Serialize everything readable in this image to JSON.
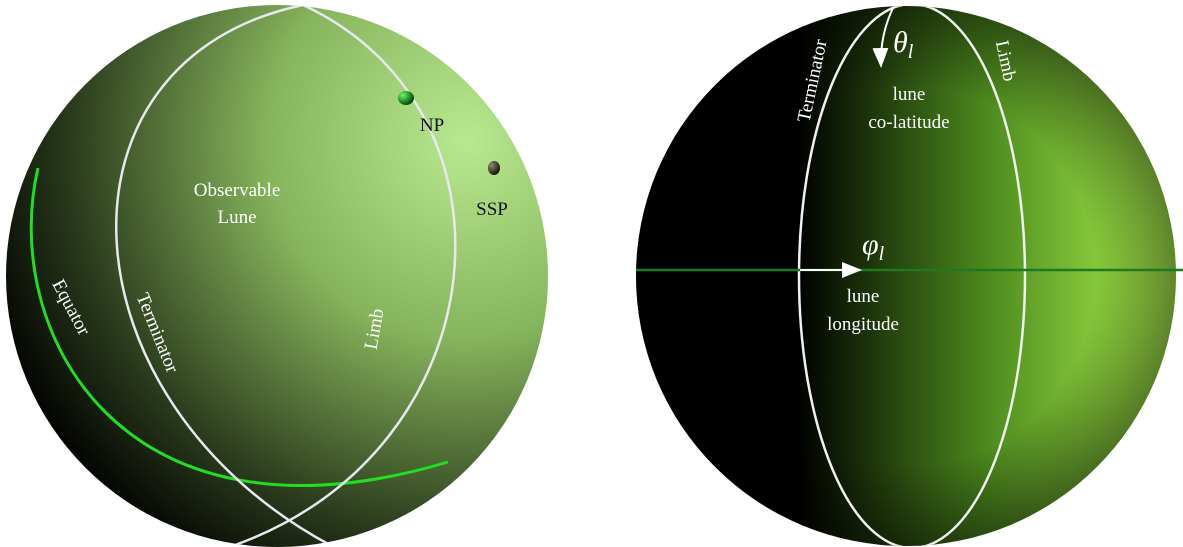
{
  "left_sphere": {
    "observable_lune": [
      "Observable",
      "Lune"
    ],
    "np": "NP",
    "ssp": "SSP",
    "equator": "Equator",
    "terminator": "Terminator",
    "limb": "Limb"
  },
  "right_sphere": {
    "theta": {
      "symbol": "θ",
      "subscript": "l"
    },
    "colatitude": [
      "lune",
      "co-latitude"
    ],
    "terminator": "Terminator",
    "limb": "Limb",
    "phi": {
      "symbol": "φ",
      "subscript": "l"
    },
    "longitude": [
      "lune",
      "longitude"
    ]
  }
}
